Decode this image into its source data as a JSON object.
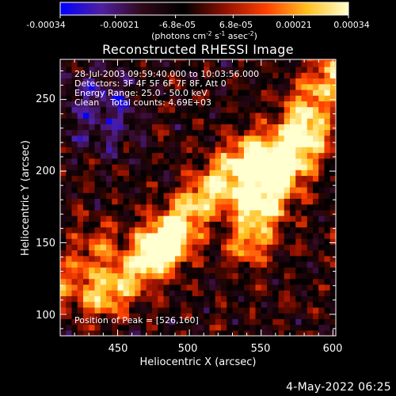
{
  "colorbar": {
    "tick_labels": [
      "-0.00034",
      "-0.00021",
      "-6.8e-05",
      "6.8e-05",
      "0.00021",
      "0.00034"
    ],
    "tick_values": [
      -0.00034,
      -0.00021,
      -6.8e-05,
      6.8e-05,
      0.00021,
      0.00034
    ],
    "range": [
      -0.00034,
      0.00034
    ],
    "units_main": "(photons cm",
    "units_exp1": "-2",
    "units_mid": " s",
    "units_exp2": "-1",
    "units_tail": " asec",
    "units_exp3": "-2",
    "units_close": ")",
    "colors": [
      "#0000ff",
      "#5020a0",
      "#300818",
      "#000000",
      "#901000",
      "#ff4000",
      "#ffc020",
      "#ffffd0"
    ]
  },
  "chart_data": {
    "type": "heatmap",
    "title": "Reconstructed RHESSI Image",
    "xlabel": "Heliocentric X (arcsec)",
    "ylabel": "Heliocentric Y (arcsec)",
    "xlim": [
      410,
      602
    ],
    "ylim": [
      85,
      278
    ],
    "x_ticks": [
      450,
      500,
      550,
      600
    ],
    "y_ticks": [
      100,
      150,
      200,
      250
    ],
    "annotations": [
      "28-Jul-2003 09:59:40.000 to 10:03:56.000",
      "Detectors: 3F 4F 5F 6F 7F 8F, Att 0",
      "Energy Range: 25.0 - 50.0 keV",
      "Clean    Total counts: 4.69E+03"
    ],
    "peak_label": "Position of Peak = [526,160]",
    "peak": [
      526,
      160
    ],
    "hot_bands": [
      {
        "from": [
          440,
          113
        ],
        "to": [
          486,
          148
        ],
        "value": 0.00032
      },
      {
        "from": [
          478,
          150
        ],
        "to": [
          540,
          212
        ],
        "value": 0.00034
      },
      {
        "from": [
          540,
          150
        ],
        "to": [
          585,
          222
        ],
        "value": 0.00028
      },
      {
        "from": [
          542,
          182
        ],
        "to": [
          598,
          268
        ],
        "value": 0.0003
      },
      {
        "from": [
          413,
          118
        ],
        "to": [
          436,
          150
        ],
        "value": 0.00018
      }
    ]
  },
  "timestamp": "4-May-2022 06:25"
}
